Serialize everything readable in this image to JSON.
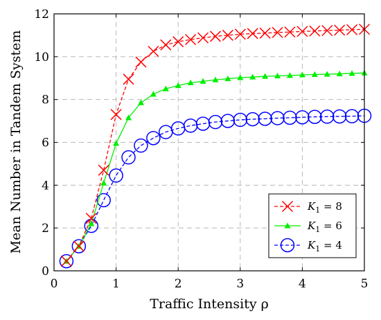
{
  "chart_data": {
    "type": "line",
    "xlabel": "Traffic Intensity ρ",
    "ylabel": "Mean Number in Tandem System",
    "xlim": [
      0,
      5
    ],
    "ylim": [
      0,
      12
    ],
    "xticks": [
      0,
      1,
      2,
      3,
      4,
      5
    ],
    "yticks": [
      0,
      2,
      4,
      6,
      8,
      10,
      12
    ],
    "grid": true,
    "legend_position": "lower-right",
    "x": [
      0.2,
      0.4,
      0.6,
      0.8,
      1.0,
      1.2,
      1.4,
      1.6,
      1.8,
      2.0,
      2.2,
      2.4,
      2.6,
      2.8,
      3.0,
      3.2,
      3.4,
      3.6,
      3.8,
      4.0,
      4.2,
      4.4,
      4.6,
      4.8,
      5.0
    ],
    "series": [
      {
        "name": "K_1 = 8",
        "legend_main": "K",
        "legend_sub": "1",
        "legend_rest": " = 8",
        "color": "#ff0000",
        "line_style": "dashed",
        "marker": "x",
        "values": [
          0.45,
          1.15,
          2.45,
          4.7,
          7.3,
          8.95,
          9.75,
          10.25,
          10.55,
          10.7,
          10.8,
          10.88,
          10.95,
          11.0,
          11.05,
          11.08,
          11.1,
          11.13,
          11.15,
          11.18,
          11.2,
          11.22,
          11.24,
          11.26,
          11.28
        ]
      },
      {
        "name": "K_1 = 6",
        "legend_main": "K",
        "legend_sub": "1",
        "legend_rest": " = 6",
        "color": "#00ee00",
        "line_style": "solid",
        "marker": "triangle",
        "values": [
          0.45,
          1.15,
          2.2,
          4.1,
          5.95,
          7.15,
          7.85,
          8.25,
          8.5,
          8.65,
          8.78,
          8.85,
          8.92,
          8.97,
          9.02,
          9.05,
          9.08,
          9.1,
          9.12,
          9.15,
          9.17,
          9.18,
          9.2,
          9.22,
          9.24
        ]
      },
      {
        "name": "K_1 = 4",
        "legend_main": "K",
        "legend_sub": "1",
        "legend_rest": " = 4",
        "color": "#0000ff",
        "line_style": "dashed",
        "marker": "circle",
        "values": [
          0.45,
          1.15,
          2.1,
          3.3,
          4.45,
          5.3,
          5.85,
          6.2,
          6.48,
          6.65,
          6.78,
          6.87,
          6.95,
          7.0,
          7.05,
          7.08,
          7.1,
          7.13,
          7.15,
          7.17,
          7.19,
          7.2,
          7.21,
          7.22,
          7.24
        ]
      }
    ]
  }
}
